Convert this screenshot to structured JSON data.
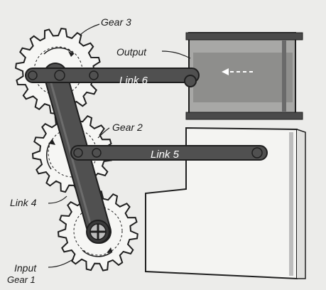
{
  "labels": {
    "gear3": "Gear 3",
    "output": "Output",
    "link6": "Link 6",
    "gear2": "Gear 2",
    "link5": "Link 5",
    "link4": "Link 4",
    "input": "Input",
    "gear1": "Gear 1"
  },
  "colors": {
    "background": "#ececea",
    "ink": "#1f1f1f",
    "link": "#505050",
    "gear_fill": "#f6f6f4",
    "housing": "#f4f4f2",
    "housing_shade": "#9a9a9a"
  }
}
